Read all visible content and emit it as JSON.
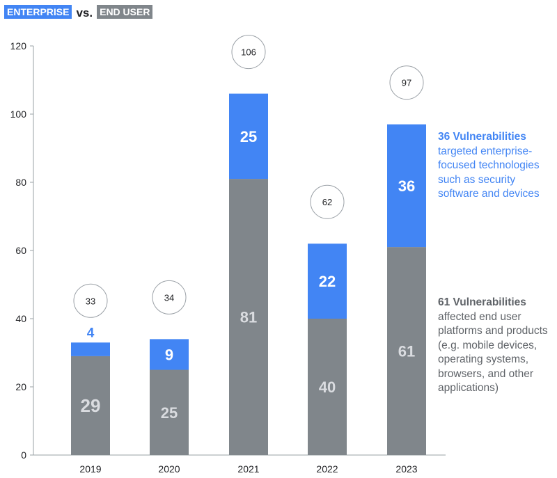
{
  "chart_data": {
    "type": "bar",
    "stacked": true,
    "title": "",
    "legend": {
      "enterprise": "ENTERPRISE",
      "vs": "vs.",
      "end_user": "END USER"
    },
    "categories": [
      "2019",
      "2020",
      "2021",
      "2022",
      "2023"
    ],
    "series": [
      {
        "name": "End User",
        "values": [
          29,
          25,
          81,
          40,
          61
        ],
        "color": "#80868b"
      },
      {
        "name": "Enterprise",
        "values": [
          4,
          9,
          25,
          22,
          36
        ],
        "color": "#4285f4"
      }
    ],
    "totals": [
      33,
      34,
      106,
      62,
      97
    ],
    "ylim": [
      0,
      120
    ],
    "yticks": [
      0,
      20,
      40,
      60,
      80,
      100,
      120
    ],
    "grid": false,
    "annotations": {
      "enterprise": {
        "title": "36 Vulnerabilities",
        "text": "targeted enterprise-focused technologies such as security software and devices"
      },
      "end_user": {
        "title": "61 Vulnerabilities",
        "text": "affected end user platforms and products (e.g. mobile devices, operating systems, browsers, and other applications)"
      }
    }
  }
}
